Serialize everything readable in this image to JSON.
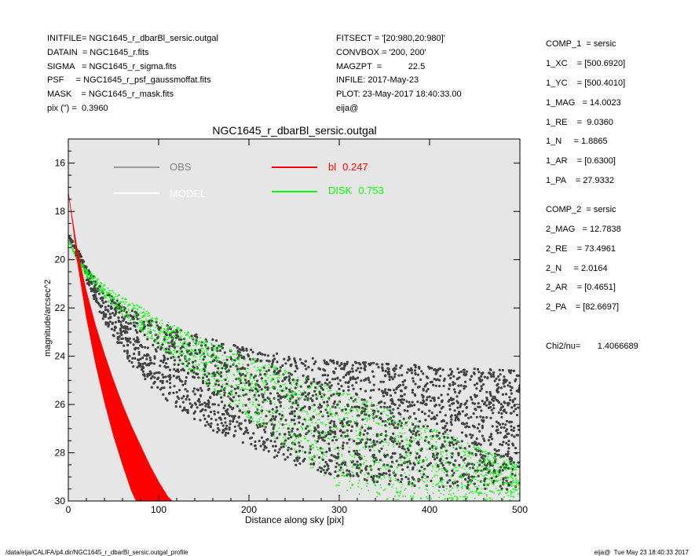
{
  "header_left": [
    "INITFILE= NGC1645_r_dbarBl_sersic.outgal",
    "DATAIN  = NGC1645_r.fits",
    "SIGMA   = NGC1645_r_sigma.fits",
    "PSF     = NGC1645_r_psf_gaussmoffat.fits",
    "MASK    = NGC1645_r_mask.fits",
    "pix (\") =  0.3960"
  ],
  "header_mid": [
    "FITSECT = '[20:980,20:980]'",
    "CONVBOX = '200, 200'",
    "MAGZPT  =           22.5",
    "INFILE: 2017-May-23",
    "PLOT: 23-May-2017 18:40:33.00",
    "eija@"
  ],
  "header_right": [
    "COMP_1  = sersic",
    "1_XC    = [500.6920]",
    "1_YC    = [500.4010]",
    "1_MAG   = 14.0023",
    "1_RE    =  9.0360",
    "1_N     = 1.8865",
    "1_AR    = [0.6300]",
    "1_PA    = 27.9332",
    "COMP_2  = sersic",
    "2_MAG   = 12.7838",
    "2_RE    = 73.4961",
    "2_N     = 2.0164",
    "2_AR    = [0.4651]",
    "2_PA    = [82.6697]",
    "Chi2/nu=       1.4066689"
  ],
  "footer_left": "/data/eija/CALIFA/p4.dir/NGC1645_r_dbarBl_sersic.outgal_profile",
  "footer_right": "eija@  Tue May 23 18:40:33 2017",
  "chart_data": {
    "type": "scatter",
    "title": "NGC1645_r_dbarBl_sersic.outgal",
    "xlabel": "Distance along sky [pix]",
    "ylabel": "magnitude/arcsec^2",
    "xlim": [
      0,
      500
    ],
    "ylim": [
      30,
      15
    ],
    "xticks": [
      0,
      100,
      200,
      300,
      400,
      500
    ],
    "yticks": [
      16,
      18,
      20,
      22,
      24,
      26,
      28,
      30
    ],
    "y_inverted": true,
    "grid": false,
    "background": "#e6e6e6",
    "legend_placement": "top",
    "legend": [
      {
        "label": "OBS",
        "value": "",
        "color": "#808080"
      },
      {
        "label": "bl",
        "value": "0.247",
        "color": "#ff0000"
      },
      {
        "label": "MODEL",
        "value": "",
        "color": "#ffffff"
      },
      {
        "label": "DISK",
        "value": "0.753",
        "color": "#00ff00"
      }
    ],
    "series": [
      {
        "name": "OBS",
        "color": "#404040",
        "upper": {
          "x": [
            0,
            10,
            20,
            40,
            70,
            100,
            150,
            200,
            250,
            300,
            350,
            400,
            450,
            500
          ],
          "y": [
            19.0,
            19.5,
            20.3,
            21.3,
            22.1,
            22.6,
            23.2,
            23.7,
            24.0,
            24.2,
            24.3,
            24.4,
            24.5,
            24.6
          ]
        },
        "lower": {
          "x": [
            0,
            10,
            20,
            40,
            70,
            100,
            150,
            200,
            250,
            300,
            350,
            400,
            450,
            500
          ],
          "y": [
            19.0,
            20.0,
            20.9,
            22.6,
            24.4,
            25.6,
            26.9,
            27.8,
            28.5,
            29.0,
            29.3,
            29.4,
            29.5,
            29.6
          ]
        }
      },
      {
        "name": "bl",
        "color": "#ff0000",
        "upper": {
          "x": [
            0,
            10,
            20,
            30,
            40,
            50,
            60,
            70,
            80,
            90,
            100,
            110,
            115
          ],
          "y": [
            17.2,
            19.6,
            21.3,
            22.7,
            23.9,
            25.0,
            26.0,
            26.9,
            27.7,
            28.5,
            29.2,
            29.8,
            30.0
          ]
        },
        "lower": {
          "x": [
            0,
            5,
            10,
            20,
            30,
            40,
            50,
            60,
            70,
            75
          ],
          "y": [
            17.2,
            18.6,
            20.1,
            22.4,
            24.3,
            25.9,
            27.3,
            28.5,
            29.6,
            30.0
          ]
        }
      },
      {
        "name": "DISK",
        "color": "#00ff00",
        "upper": {
          "x": [
            0,
            10,
            20,
            50,
            100,
            150,
            200,
            250,
            300,
            350,
            400,
            450,
            500
          ],
          "y": [
            19.2,
            19.9,
            20.4,
            21.3,
            22.4,
            23.3,
            24.0,
            24.7,
            25.4,
            26.1,
            26.9,
            27.7,
            28.5
          ]
        },
        "lower": {
          "x": [
            0,
            10,
            20,
            50,
            100,
            150,
            200,
            250,
            300,
            350,
            400,
            450,
            500
          ],
          "y": [
            19.2,
            20.1,
            20.7,
            22.0,
            23.6,
            25.1,
            26.6,
            28.1,
            29.5,
            30.0,
            30.0,
            30.0,
            30.0
          ]
        }
      }
    ]
  }
}
